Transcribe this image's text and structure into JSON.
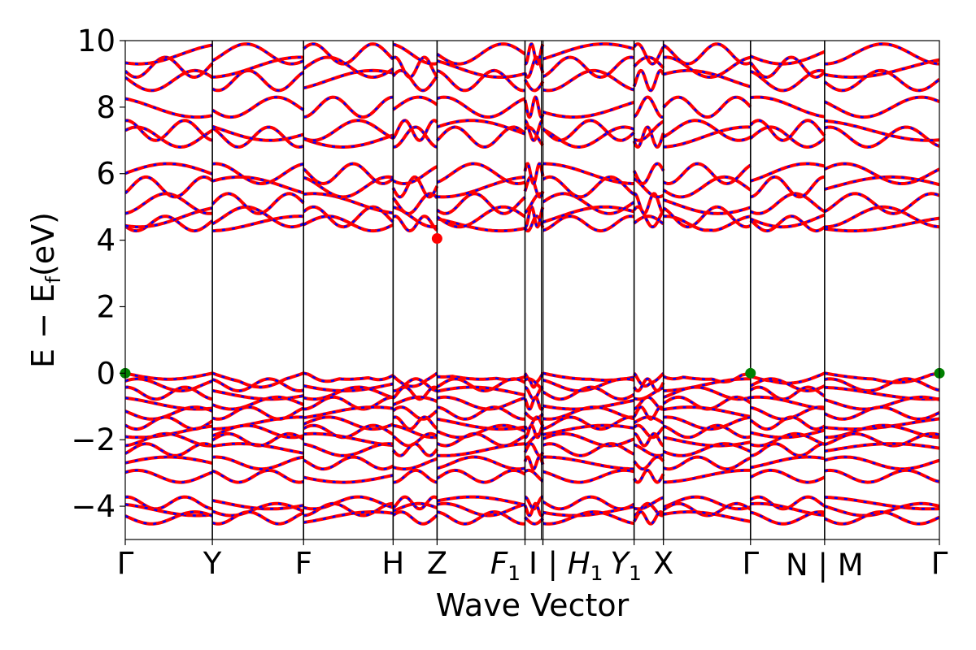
{
  "chart_data": {
    "type": "line",
    "xlabel": "Wave Vector",
    "ylabel_main": "E − E",
    "ylabel_sub": "f",
    "ylabel_unit": "(eV)",
    "ylim": [
      -5,
      10
    ],
    "yticks": [
      {
        "value": -4,
        "label": "−4"
      },
      {
        "value": -2,
        "label": "−2"
      },
      {
        "value": 0,
        "label": "0"
      },
      {
        "value": 2,
        "label": "2"
      },
      {
        "value": 4,
        "label": "4"
      },
      {
        "value": 6,
        "label": "6"
      },
      {
        "value": 8,
        "label": "8"
      },
      {
        "value": 10,
        "label": "10"
      }
    ],
    "k_points": [
      {
        "pos": 0.0,
        "label": "Γ"
      },
      {
        "pos": 0.107,
        "label": "Y"
      },
      {
        "pos": 0.219,
        "label": "F"
      },
      {
        "pos": 0.329,
        "label": "H"
      },
      {
        "pos": 0.383,
        "label": "Z"
      },
      {
        "pos": 0.491,
        "label": "F",
        "sub": "1"
      },
      {
        "pos": 0.513,
        "label": "I"
      },
      {
        "pos": 0.513,
        "label": "| H",
        "sub": "1"
      },
      {
        "pos": 0.625,
        "label": "Y",
        "sub": "1"
      },
      {
        "pos": 0.661,
        "label": "X"
      },
      {
        "pos": 0.768,
        "label": "Γ"
      },
      {
        "pos": 0.859,
        "label": "N | M"
      },
      {
        "pos": 1.0,
        "label": "Γ"
      }
    ],
    "band_colors": {
      "spin_up": "#ff0000",
      "spin_down": "#0000ff"
    },
    "valence_bands_approx": [
      {
        "energy_at_gamma": 0.0
      },
      {
        "energy_at_gamma": -0.35
      },
      {
        "energy_at_gamma": -0.6
      },
      {
        "energy_at_gamma": -0.9
      },
      {
        "energy_at_gamma": -1.2
      },
      {
        "energy_at_gamma": -1.5
      },
      {
        "energy_at_gamma": -1.75
      },
      {
        "energy_at_gamma": -2.0
      },
      {
        "energy_at_gamma": -2.3
      },
      {
        "energy_at_gamma": -2.7
      },
      {
        "energy_at_gamma": -3.1
      },
      {
        "energy_at_gamma": -3.9
      },
      {
        "energy_at_gamma": -4.1
      },
      {
        "energy_at_gamma": -4.35
      }
    ],
    "conduction_bands_approx": [
      {
        "energy_at_gamma": 4.5
      },
      {
        "energy_at_gamma": 4.7
      },
      {
        "energy_at_gamma": 5.1
      },
      {
        "energy_at_gamma": 5.6
      },
      {
        "energy_at_gamma": 6.0
      },
      {
        "energy_at_gamma": 7.1
      },
      {
        "energy_at_gamma": 7.3
      },
      {
        "energy_at_gamma": 8.0
      },
      {
        "energy_at_gamma": 8.8
      },
      {
        "energy_at_gamma": 9.2
      },
      {
        "energy_at_gamma": 9.6
      }
    ],
    "markers": [
      {
        "kpos": 0.0,
        "energy": 0.0,
        "color": "#008000",
        "role": "VBM"
      },
      {
        "kpos": 0.768,
        "energy": 0.0,
        "color": "#008000",
        "role": "VBM"
      },
      {
        "kpos": 1.0,
        "energy": 0.0,
        "color": "#008000",
        "role": "VBM"
      },
      {
        "kpos": 0.383,
        "energy": 4.05,
        "color": "#ff0000",
        "role": "CBM"
      }
    ],
    "grid": false
  }
}
